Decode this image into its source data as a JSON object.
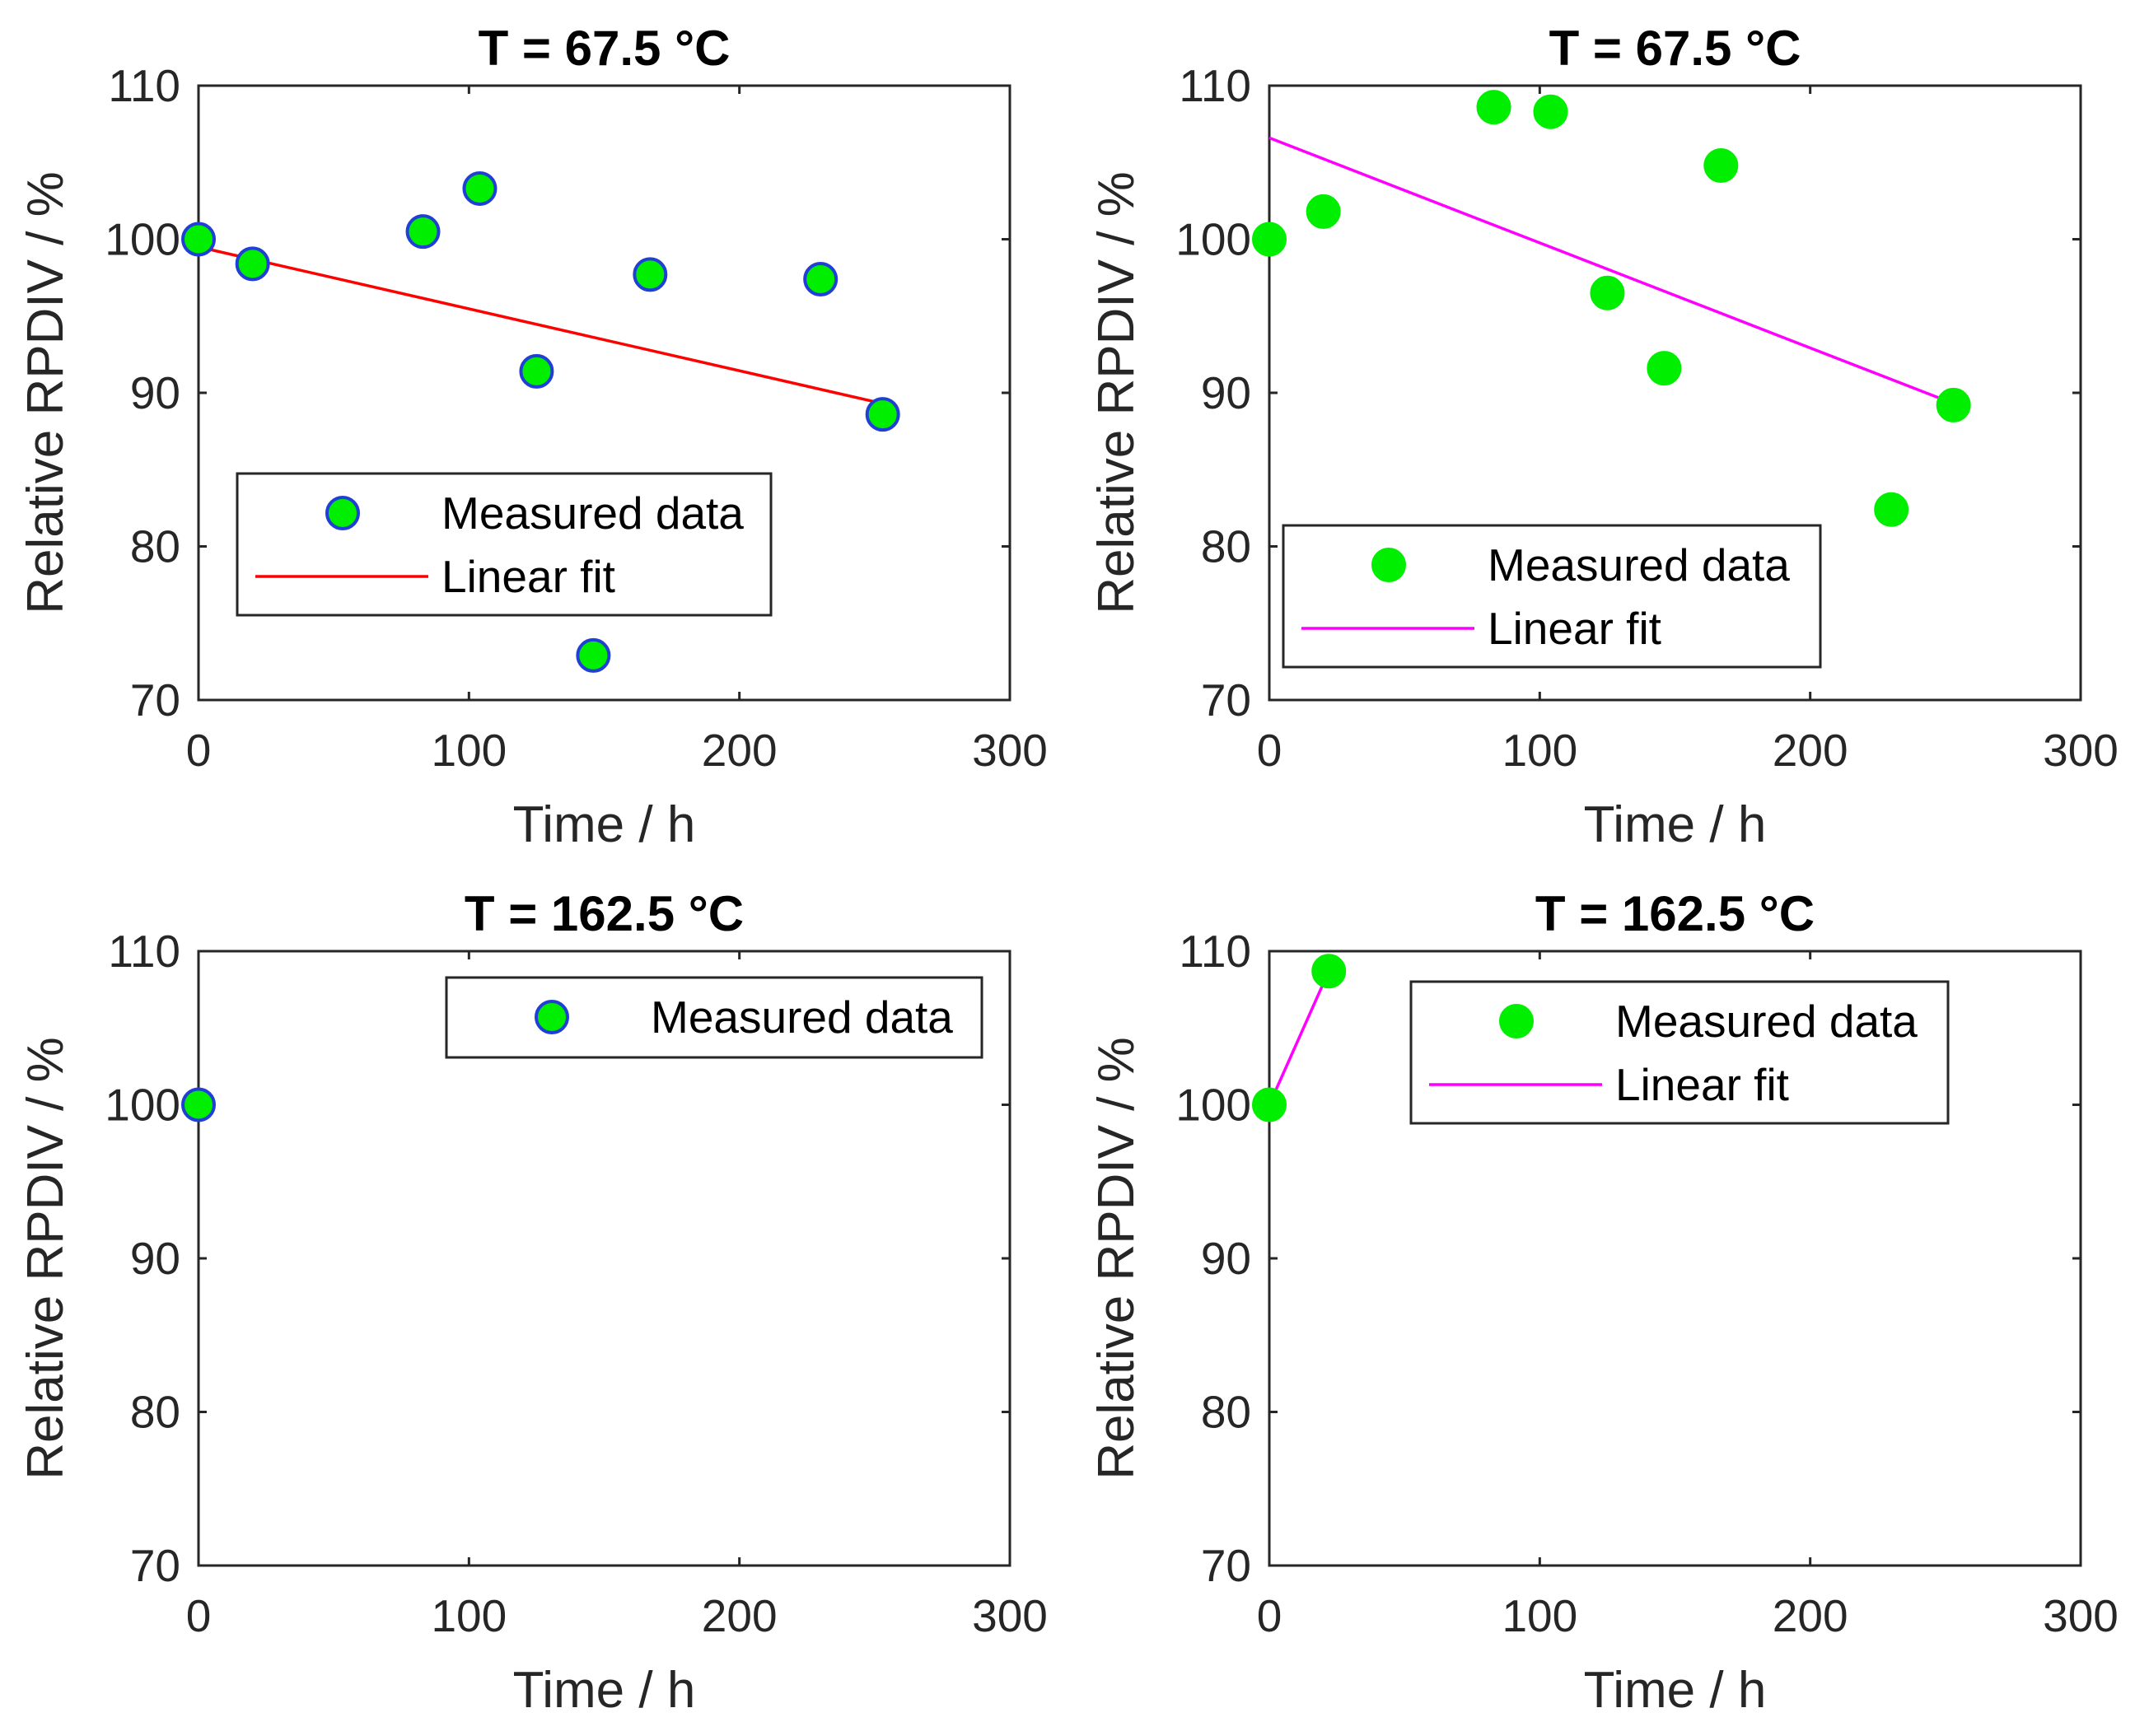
{
  "chart_data": [
    {
      "type": "scatter",
      "title": "T = 67.5 °C",
      "xlabel": "Time / h",
      "ylabel": "Relative RPDIV / %",
      "xlim": [
        0,
        300
      ],
      "ylim": [
        70,
        110
      ],
      "xticks": [
        "0",
        "100",
        "200",
        "300"
      ],
      "yticks": [
        "70",
        "80",
        "90",
        "100",
        "110"
      ],
      "legend_position": "center-left",
      "series": [
        {
          "name": "Measured data",
          "kind": "marker",
          "fill": "#00ee00",
          "edge": "#1f3fd6",
          "x": [
            0,
            20,
            83,
            104,
            125,
            146,
            167,
            230,
            253
          ],
          "y": [
            100,
            98.4,
            100.5,
            103.3,
            91.4,
            72.9,
            97.7,
            97.4,
            88.6
          ]
        },
        {
          "name": "Linear fit",
          "kind": "line",
          "color": "#ff0000",
          "x": [
            0,
            253
          ],
          "y": [
            99.5,
            89.3
          ]
        }
      ]
    },
    {
      "type": "scatter",
      "title": "T = 67.5 °C",
      "xlabel": "Time / h",
      "ylabel": "Relative RPDIV / %",
      "xlim": [
        0,
        300
      ],
      "ylim": [
        70,
        110
      ],
      "xticks": [
        "0",
        "100",
        "200",
        "300"
      ],
      "yticks": [
        "70",
        "80",
        "90",
        "100",
        "110"
      ],
      "legend_position": "lower-left",
      "series": [
        {
          "name": "Measured data",
          "kind": "marker",
          "fill": "#00ee00",
          "edge": "#00ee00",
          "x": [
            0,
            20,
            83,
            104,
            125,
            146,
            167,
            230,
            253
          ],
          "y": [
            100,
            101.8,
            108.6,
            108.3,
            96.5,
            91.6,
            104.8,
            82.4,
            89.2
          ]
        },
        {
          "name": "Linear fit",
          "kind": "line",
          "color": "#ff00ff",
          "x": [
            0,
            253
          ],
          "y": [
            106.6,
            89.3
          ]
        }
      ]
    },
    {
      "type": "scatter",
      "title": "T = 162.5 °C",
      "xlabel": "Time / h",
      "ylabel": "Relative RPDIV / %",
      "xlim": [
        0,
        300
      ],
      "ylim": [
        70,
        110
      ],
      "xticks": [
        "0",
        "100",
        "200",
        "300"
      ],
      "yticks": [
        "70",
        "80",
        "90",
        "100",
        "110"
      ],
      "legend_position": "top-right",
      "series": [
        {
          "name": "Measured data",
          "kind": "marker",
          "fill": "#00ee00",
          "edge": "#1f3fd6",
          "x": [
            0
          ],
          "y": [
            100
          ]
        }
      ]
    },
    {
      "type": "scatter",
      "title": "T = 162.5 °C",
      "xlabel": "Time / h",
      "ylabel": "Relative RPDIV / %",
      "xlim": [
        0,
        300
      ],
      "ylim": [
        70,
        110
      ],
      "xticks": [
        "0",
        "100",
        "200",
        "300"
      ],
      "yticks": [
        "70",
        "80",
        "90",
        "100",
        "110"
      ],
      "legend_position": "top-center",
      "series": [
        {
          "name": "Measured data",
          "kind": "marker",
          "fill": "#00ee00",
          "edge": "#00ee00",
          "x": [
            0,
            22
          ],
          "y": [
            100,
            108.7
          ]
        },
        {
          "name": "Linear fit",
          "kind": "line",
          "color": "#ff00ff",
          "x": [
            0,
            22
          ],
          "y": [
            100,
            108.7
          ]
        }
      ]
    }
  ]
}
